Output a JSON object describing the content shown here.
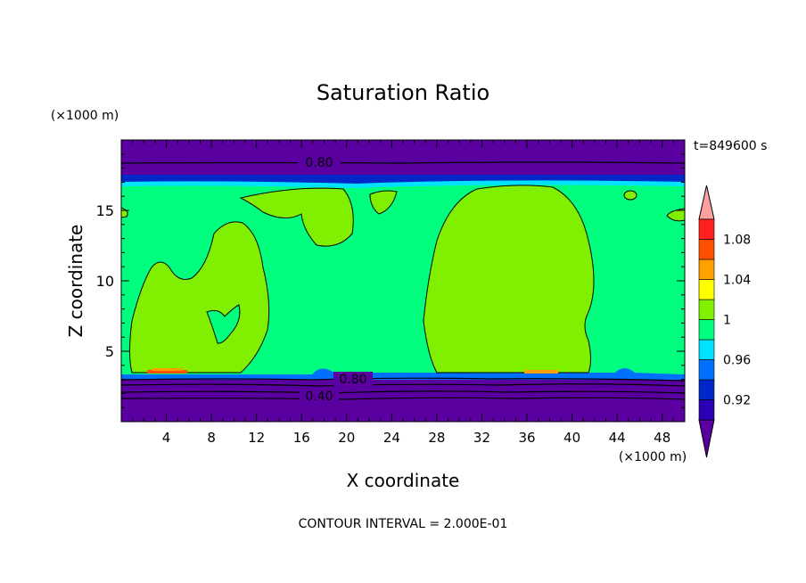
{
  "chart_data": {
    "type": "contour",
    "title": "Saturation Ratio",
    "xlabel": "X coordinate",
    "ylabel": "Z coordinate",
    "x_unit": "(×1000 m)",
    "y_unit": "(×1000 m)",
    "time_label": "t=849600 s",
    "footer": "CONTOUR INTERVAL = 2.000E-01",
    "xlim": [
      0,
      50
    ],
    "ylim": [
      0,
      20
    ],
    "x_ticks": [
      4,
      8,
      12,
      16,
      20,
      24,
      28,
      32,
      36,
      40,
      44,
      48
    ],
    "y_ticks": [
      5,
      10,
      15
    ],
    "contour_labels": [
      "0.80",
      "0.80",
      "0.40"
    ],
    "colorbar": {
      "levels": [
        0.9,
        0.92,
        0.94,
        0.96,
        0.98,
        1.0,
        1.02,
        1.04,
        1.06,
        1.08,
        1.1
      ],
      "tick_labels": [
        "1.08",
        "1.04",
        "1",
        "0.96",
        "0.92"
      ],
      "colors": [
        "#5a00a0",
        "#2a00b0",
        "#0028c8",
        "#0070ff",
        "#00e0ff",
        "#00ff7f",
        "#80f000",
        "#ffff00",
        "#ffa000",
        "#ff5000",
        "#ff2020",
        "#ffa0a0"
      ]
    },
    "regions": {
      "background_value": "0.98-1.00",
      "blob_value": "1.00-1.02",
      "dry_layers": "<0.90"
    }
  }
}
